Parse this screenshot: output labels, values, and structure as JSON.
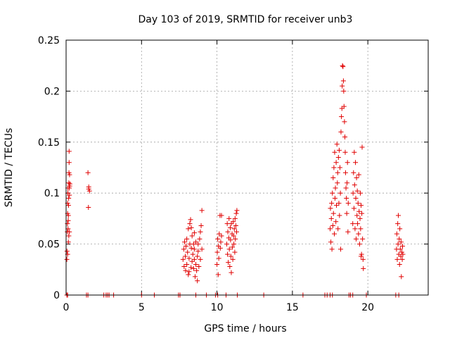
{
  "chart_data": {
    "type": "scatter",
    "title": "Day 103 of 2019, SRMTID for receiver unb3",
    "xlabel": "GPS time / hours",
    "ylabel": "SRMTID / TECUs",
    "xlim": [
      0,
      24
    ],
    "ylim": [
      0,
      0.25
    ],
    "xticks": [
      0,
      5,
      10,
      15,
      20
    ],
    "yticks": [
      0,
      0.05,
      0.1,
      0.15,
      0.2,
      0.25
    ],
    "xtick_labels": [
      "0",
      "5",
      "10",
      "15",
      "20"
    ],
    "ytick_labels": [
      "0",
      "0.05",
      "0.1",
      "0.15",
      "0.2",
      "0.25"
    ],
    "grid": true,
    "marker": "+",
    "color": "#e00000",
    "series": [
      {
        "name": "SRMTID",
        "points": [
          [
            0.05,
            0.035
          ],
          [
            0.06,
            0.043
          ],
          [
            0.08,
            0.062
          ],
          [
            0.09,
            0.07
          ],
          [
            0.1,
            0.08
          ],
          [
            0.1,
            0.09
          ],
          [
            0.12,
            0.1
          ],
          [
            0.12,
            0.105
          ],
          [
            0.13,
            0.065
          ],
          [
            0.14,
            0.073
          ],
          [
            0.15,
            0.078
          ],
          [
            0.16,
            0.088
          ],
          [
            0.17,
            0.095
          ],
          [
            0.18,
            0.11
          ],
          [
            0.19,
            0.12
          ],
          [
            0.2,
            0.13
          ],
          [
            0.2,
            0.141
          ],
          [
            0.21,
            0.105
          ],
          [
            0.22,
            0.098
          ],
          [
            0.23,
            0.118
          ],
          [
            0.24,
            0.107
          ],
          [
            0.25,
            0.109
          ],
          [
            0.1,
            0.04
          ],
          [
            0.15,
            0.052
          ],
          [
            0.18,
            0.058
          ],
          [
            0.22,
            0.062
          ],
          [
            1.45,
            0.12
          ],
          [
            1.5,
            0.106
          ],
          [
            1.5,
            0.104
          ],
          [
            1.48,
            0.086
          ],
          [
            1.55,
            0.102
          ],
          [
            7.75,
            0.035
          ],
          [
            7.8,
            0.045
          ],
          [
            7.82,
            0.028
          ],
          [
            7.85,
            0.052
          ],
          [
            7.9,
            0.038
          ],
          [
            7.92,
            0.024
          ],
          [
            7.95,
            0.048
          ],
          [
            8.0,
            0.03
          ],
          [
            8.0,
            0.055
          ],
          [
            8.05,
            0.042
          ],
          [
            8.1,
            0.065
          ],
          [
            8.1,
            0.02
          ],
          [
            8.15,
            0.036
          ],
          [
            8.2,
            0.07
          ],
          [
            8.2,
            0.05
          ],
          [
            8.25,
            0.074
          ],
          [
            8.28,
            0.027
          ],
          [
            8.3,
            0.046
          ],
          [
            8.35,
            0.058
          ],
          [
            8.35,
            0.033
          ],
          [
            8.4,
            0.04
          ],
          [
            8.45,
            0.026
          ],
          [
            8.45,
            0.05
          ],
          [
            8.5,
            0.035
          ],
          [
            8.5,
            0.045
          ],
          [
            8.55,
            0.018
          ],
          [
            8.6,
            0.03
          ],
          [
            8.6,
            0.052
          ],
          [
            8.65,
            0.024
          ],
          [
            8.7,
            0.038
          ],
          [
            8.7,
            0.014
          ],
          [
            8.75,
            0.043
          ],
          [
            8.8,
            0.028
          ],
          [
            8.85,
            0.055
          ],
          [
            8.9,
            0.062
          ],
          [
            8.9,
            0.035
          ],
          [
            8.95,
            0.068
          ],
          [
            9.0,
            0.045
          ],
          [
            9.0,
            0.083
          ],
          [
            8.3,
            0.066
          ],
          [
            8.5,
            0.061
          ],
          [
            8.75,
            0.05
          ],
          [
            8.15,
            0.023
          ],
          [
            10.0,
            0.03
          ],
          [
            10.02,
            0.042
          ],
          [
            10.05,
            0.055
          ],
          [
            10.08,
            0.02
          ],
          [
            10.1,
            0.048
          ],
          [
            10.12,
            0.036
          ],
          [
            10.15,
            0.06
          ],
          [
            10.2,
            0.078
          ],
          [
            10.22,
            0.046
          ],
          [
            10.25,
            0.052
          ],
          [
            10.3,
            0.078
          ],
          [
            10.3,
            0.058
          ],
          [
            10.65,
            0.05
          ],
          [
            10.68,
            0.07
          ],
          [
            10.7,
            0.04
          ],
          [
            10.72,
            0.062
          ],
          [
            10.75,
            0.032
          ],
          [
            10.78,
            0.056
          ],
          [
            10.8,
            0.075
          ],
          [
            10.82,
            0.045
          ],
          [
            10.85,
            0.028
          ],
          [
            10.88,
            0.066
          ],
          [
            10.9,
            0.054
          ],
          [
            10.92,
            0.038
          ],
          [
            10.95,
            0.07
          ],
          [
            10.95,
            0.022
          ],
          [
            11.0,
            0.06
          ],
          [
            11.02,
            0.047
          ],
          [
            11.05,
            0.035
          ],
          [
            11.08,
            0.072
          ],
          [
            11.1,
            0.058
          ],
          [
            11.12,
            0.05
          ],
          [
            11.15,
            0.065
          ],
          [
            11.18,
            0.042
          ],
          [
            11.2,
            0.075
          ],
          [
            11.22,
            0.055
          ],
          [
            11.25,
            0.068
          ],
          [
            11.28,
            0.08
          ],
          [
            11.3,
            0.062
          ],
          [
            11.32,
            0.083
          ],
          [
            17.5,
            0.065
          ],
          [
            17.52,
            0.085
          ],
          [
            17.55,
            0.052
          ],
          [
            17.58,
            0.075
          ],
          [
            17.6,
            0.09
          ],
          [
            17.62,
            0.045
          ],
          [
            17.65,
            0.1
          ],
          [
            17.68,
            0.068
          ],
          [
            17.7,
            0.115
          ],
          [
            17.72,
            0.08
          ],
          [
            17.75,
            0.125
          ],
          [
            17.78,
            0.06
          ],
          [
            17.8,
            0.14
          ],
          [
            17.82,
            0.095
          ],
          [
            17.85,
            0.105
          ],
          [
            17.88,
            0.072
          ],
          [
            17.9,
            0.13
          ],
          [
            17.92,
            0.088
          ],
          [
            17.95,
            0.148
          ],
          [
            17.98,
            0.11
          ],
          [
            18.0,
            0.12
          ],
          [
            18.02,
            0.065
          ],
          [
            18.05,
            0.135
          ],
          [
            18.08,
            0.09
          ],
          [
            18.1,
            0.142
          ],
          [
            18.12,
            0.078
          ],
          [
            18.15,
            0.125
          ],
          [
            18.18,
            0.1
          ],
          [
            18.2,
            0.045
          ],
          [
            18.22,
            0.16
          ],
          [
            18.25,
            0.175
          ],
          [
            18.28,
            0.183
          ],
          [
            18.3,
            0.205
          ],
          [
            18.32,
            0.225
          ],
          [
            18.35,
            0.224
          ],
          [
            18.38,
            0.21
          ],
          [
            18.4,
            0.2
          ],
          [
            18.42,
            0.185
          ],
          [
            18.45,
            0.17
          ],
          [
            18.48,
            0.155
          ],
          [
            18.5,
            0.14
          ],
          [
            18.52,
            0.12
          ],
          [
            18.55,
            0.105
          ],
          [
            18.58,
            0.095
          ],
          [
            18.6,
            0.08
          ],
          [
            18.62,
            0.11
          ],
          [
            18.65,
            0.13
          ],
          [
            18.68,
            0.062
          ],
          [
            18.7,
            0.09
          ],
          [
            19.0,
            0.07
          ],
          [
            19.02,
            0.1
          ],
          [
            19.05,
            0.12
          ],
          [
            19.08,
            0.085
          ],
          [
            19.1,
            0.14
          ],
          [
            19.12,
            0.108
          ],
          [
            19.15,
            0.065
          ],
          [
            19.18,
            0.13
          ],
          [
            19.2,
            0.095
          ],
          [
            19.22,
            0.055
          ],
          [
            19.25,
            0.115
          ],
          [
            19.28,
            0.078
          ],
          [
            19.3,
            0.102
          ],
          [
            19.32,
            0.07
          ],
          [
            19.35,
            0.09
          ],
          [
            19.38,
            0.06
          ],
          [
            19.4,
            0.118
          ],
          [
            19.42,
            0.082
          ],
          [
            19.45,
            0.05
          ],
          [
            19.48,
            0.075
          ],
          [
            19.5,
            0.1
          ],
          [
            19.52,
            0.065
          ],
          [
            19.55,
            0.088
          ],
          [
            19.58,
            0.04
          ],
          [
            19.6,
            0.08
          ],
          [
            19.62,
            0.145
          ],
          [
            19.65,
            0.055
          ],
          [
            19.68,
            0.035
          ],
          [
            19.7,
            0.026
          ],
          [
            19.55,
            0.038
          ],
          [
            21.9,
            0.045
          ],
          [
            21.92,
            0.06
          ],
          [
            21.95,
            0.035
          ],
          [
            21.98,
            0.07
          ],
          [
            22.0,
            0.05
          ],
          [
            22.02,
            0.078
          ],
          [
            22.05,
            0.04
          ],
          [
            22.08,
            0.055
          ],
          [
            22.1,
            0.03
          ],
          [
            22.12,
            0.065
          ],
          [
            22.15,
            0.045
          ],
          [
            22.18,
            0.038
          ],
          [
            22.2,
            0.052
          ],
          [
            22.22,
            0.018
          ],
          [
            22.25,
            0.042
          ],
          [
            22.28,
            0.035
          ],
          [
            22.3,
            0.048
          ],
          [
            22.32,
            0.04
          ],
          [
            0.05,
            0.0
          ],
          [
            0.1,
            0.0
          ],
          [
            1.35,
            0.0
          ],
          [
            1.45,
            0.0
          ],
          [
            2.5,
            0.0
          ],
          [
            2.65,
            0.0
          ],
          [
            2.75,
            0.0
          ],
          [
            2.85,
            0.0
          ],
          [
            3.15,
            0.0
          ],
          [
            5.0,
            0.0
          ],
          [
            5.85,
            0.0
          ],
          [
            7.45,
            0.0
          ],
          [
            7.55,
            0.0
          ],
          [
            8.6,
            0.0
          ],
          [
            9.3,
            0.0
          ],
          [
            9.9,
            0.0
          ],
          [
            10.05,
            0.0
          ],
          [
            10.6,
            0.0
          ],
          [
            11.35,
            0.0
          ],
          [
            13.1,
            0.0
          ],
          [
            15.7,
            0.0
          ],
          [
            17.15,
            0.0
          ],
          [
            17.3,
            0.0
          ],
          [
            17.5,
            0.0
          ],
          [
            17.65,
            0.0
          ],
          [
            18.75,
            0.0
          ],
          [
            18.85,
            0.0
          ],
          [
            19.0,
            0.0
          ],
          [
            19.9,
            0.0
          ],
          [
            21.85,
            0.0
          ],
          [
            22.05,
            0.0
          ]
        ]
      }
    ]
  }
}
